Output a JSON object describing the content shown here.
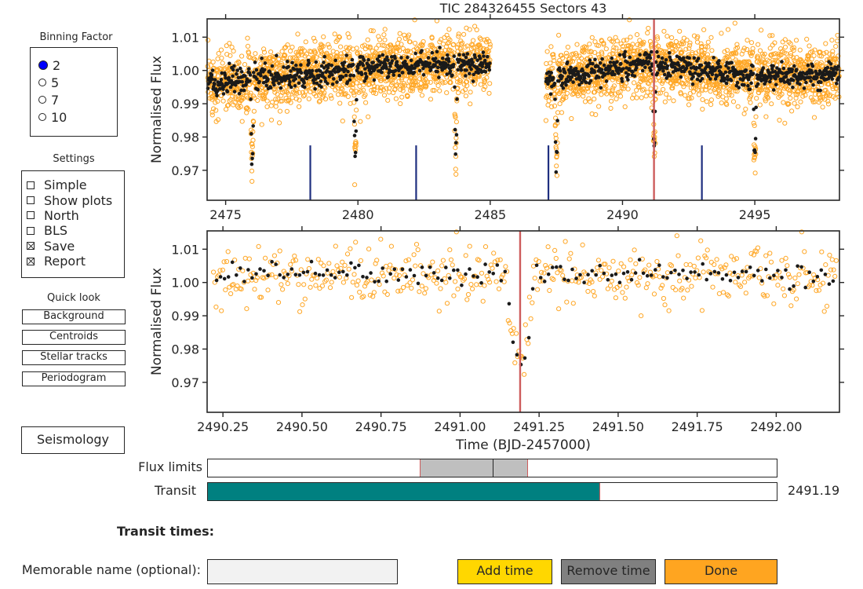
{
  "binning": {
    "title": "Binning Factor",
    "options": [
      "2",
      "5",
      "7",
      "10"
    ],
    "selected_index": 0
  },
  "settings": {
    "title": "Settings",
    "items": [
      {
        "label": "Simple",
        "checked": false
      },
      {
        "label": "Show plots",
        "checked": false
      },
      {
        "label": "North",
        "checked": false
      },
      {
        "label": "BLS",
        "checked": false
      },
      {
        "label": "Save",
        "checked": true
      },
      {
        "label": "Report",
        "checked": true
      }
    ]
  },
  "quick_look": {
    "title": "Quick look",
    "buttons": [
      "Background",
      "Centroids",
      "Stellar tracks",
      "Periodogram"
    ]
  },
  "seismology_label": "Seismology",
  "sliders": {
    "flux_limits": {
      "label": "Flux limits",
      "low": 0.373,
      "high": 0.563,
      "mid": 0.501
    },
    "transit": {
      "label": "Transit",
      "value_text": "2491.19",
      "fraction": 0.69
    }
  },
  "transit_times_label": "Transit times:",
  "name_field": {
    "label": "Memorable name (optional):",
    "value": ""
  },
  "buttons": {
    "add": "Add time",
    "remove": "Remove time",
    "done": "Done"
  },
  "colors": {
    "orange": "#ffa726",
    "black_points": "#1a1a1a",
    "red_line": "#cd5c5c",
    "blue_markers": "#1f2f7f",
    "teal": "#008080",
    "add_btn": "#ffd700",
    "remove_btn": "#808080",
    "done_btn": "#ffa520",
    "gray_range": "#bfbfbf"
  },
  "chart_data": [
    {
      "type": "scatter",
      "title": "TIC 284326455     Sectors 43",
      "xlabel": "",
      "ylabel": "Normalised Flux",
      "xlim": [
        2474.3,
        2498.2
      ],
      "ylim": [
        0.961,
        1.0155
      ],
      "xticks": [
        2475,
        2480,
        2485,
        2490,
        2495
      ],
      "yticks": [
        0.97,
        0.98,
        0.99,
        1.0,
        1.01
      ],
      "gap": [
        2485.0,
        2487.1
      ],
      "transits": [
        2476.0,
        2479.9,
        2483.7,
        2487.5,
        2491.2,
        2495.0
      ],
      "transit_depth": 0.976,
      "transit_markers": [
        2478.2,
        2482.2,
        2487.2,
        2493.0
      ],
      "marker_top": 0.9775,
      "highlight_x": 2491.19,
      "series": [
        {
          "name": "",
          "kind": "raw",
          "scatter_sigma": 0.0045
        },
        {
          "name": "",
          "kind": "binned",
          "scatter_sigma": 0.0018
        }
      ]
    },
    {
      "type": "scatter",
      "title": "",
      "xlabel": "Time (BJD-2457000)",
      "ylabel": "Normalised Flux",
      "xlim": [
        2490.2,
        2492.2
      ],
      "ylim": [
        0.961,
        1.0155
      ],
      "xticks": [
        2490.25,
        2490.5,
        2490.75,
        2491.0,
        2491.25,
        2491.5,
        2491.75,
        2492.0
      ],
      "yticks": [
        0.97,
        0.98,
        0.99,
        1.0,
        1.01
      ],
      "transit_center": 2491.19,
      "transit_depth": 0.976,
      "highlight_x": 2491.19,
      "series": [
        {
          "name": "",
          "kind": "raw",
          "scatter_sigma": 0.0045
        },
        {
          "name": "",
          "kind": "binned",
          "scatter_sigma": 0.0016
        }
      ]
    }
  ]
}
